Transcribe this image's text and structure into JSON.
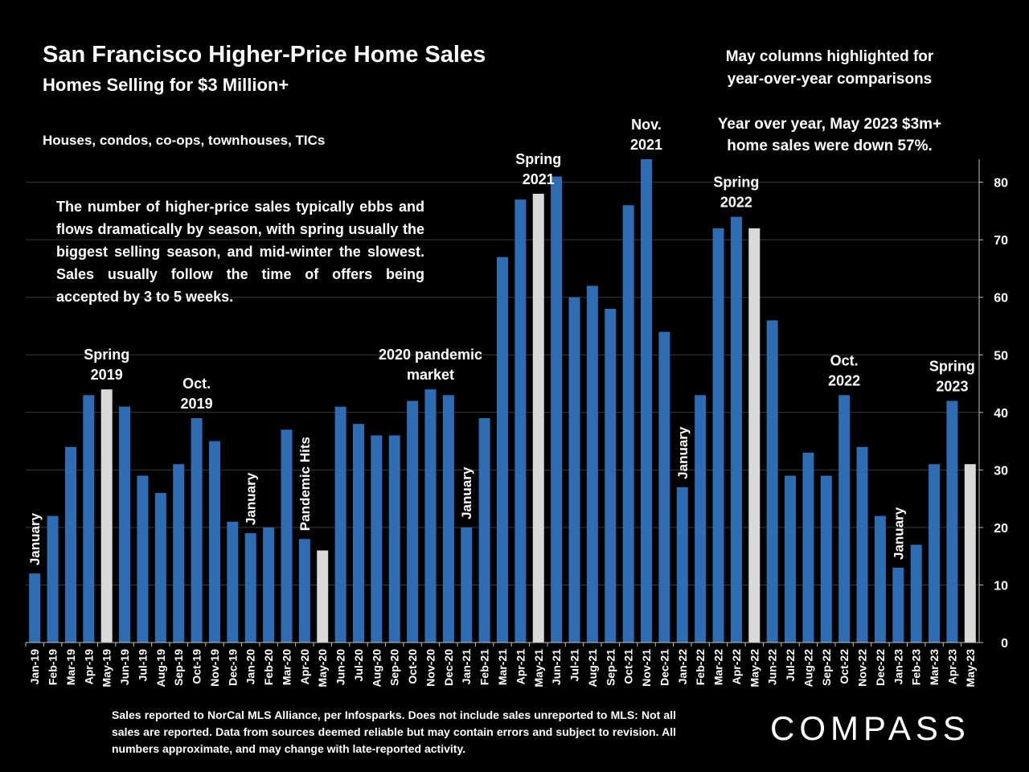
{
  "header": {
    "title": "San Francisco Higher-Price Home Sales",
    "subtitle": "Homes Selling for $3 Million+",
    "property_types": "Houses, condos, co-ops, townhouses, TICs"
  },
  "notes": {
    "may_highlight_1": "May columns highlighted for",
    "may_highlight_2": "year-over-year comparisons",
    "yoy_1": "Year over year, May 2023 $3m+",
    "yoy_2": "home sales were down 57%.",
    "explanation": "The number of higher-price sales typically ebbs and flows dramatically by season, with spring usually the biggest selling season, and mid-winter the slowest. Sales usually follow the time of offers being accepted by 3 to 5 weeks."
  },
  "footer": {
    "footnote": "Sales reported to NorCal MLS Alliance, per Infosparks. Does not include sales unreported to MLS: Not all sales are reported. Data from sources deemed reliable but may contain errors and subject to revision.  All numbers approximate, and may change with late-reported activity.",
    "logo": "COMPASS"
  },
  "colors": {
    "background": "#000000",
    "bar": "#2e6db4",
    "bar_highlight": "#d9d9d9",
    "grid": "#3a3a3a",
    "text": "#ffffff"
  },
  "chart_data": {
    "type": "bar",
    "categories": [
      "Jan-19",
      "Feb-19",
      "Mar-19",
      "Apr-19",
      "May-19",
      "Jun-19",
      "Jul-19",
      "Aug-19",
      "Sep-19",
      "Oct-19",
      "Nov-19",
      "Dec-19",
      "Jan-20",
      "Feb-20",
      "Mar-20",
      "Apr-20",
      "May-20",
      "Jun-20",
      "Jul-20",
      "Aug-20",
      "Sep-20",
      "Oct-20",
      "Nov-20",
      "Dec-20",
      "Jan-21",
      "Feb-21",
      "Mar-21",
      "Apr-21",
      "May-21",
      "Jun-21",
      "Jul-21",
      "Aug-21",
      "Sep-21",
      "Oct-21",
      "Nov-21",
      "Dec-21",
      "Jan-22",
      "Feb-22",
      "Mar-22",
      "Apr-22",
      "May-22",
      "Jun-22",
      "Jul-22",
      "Aug-22",
      "Sep-22",
      "Oct-22",
      "Nov-22",
      "Dec-22",
      "Jan-23",
      "Feb-23",
      "Mar-23",
      "Apr-23",
      "May-23"
    ],
    "values": [
      12,
      22,
      34,
      43,
      44,
      41,
      29,
      26,
      31,
      39,
      35,
      21,
      19,
      20,
      37,
      18,
      16,
      41,
      38,
      36,
      36,
      42,
      44,
      43,
      20,
      39,
      67,
      77,
      78,
      81,
      60,
      62,
      58,
      76,
      84,
      54,
      27,
      43,
      72,
      74,
      72,
      56,
      29,
      33,
      29,
      43,
      34,
      22,
      13,
      17,
      31,
      42,
      31
    ],
    "highlighted": [
      "May-19",
      "May-20",
      "May-21",
      "May-22",
      "May-23"
    ],
    "ylim": [
      0,
      84
    ],
    "yticks": [
      0,
      10,
      20,
      30,
      40,
      50,
      60,
      70,
      80
    ],
    "y_axis_side": "right",
    "grid": true,
    "annotations": [
      {
        "category": "Jan-19",
        "text": "January",
        "rotated": true
      },
      {
        "category": "May-19",
        "text": "Spring 2019",
        "lines": [
          "Spring",
          "2019"
        ]
      },
      {
        "category": "Oct-19",
        "text": "Oct. 2019",
        "lines": [
          "Oct.",
          "2019"
        ]
      },
      {
        "category": "Jan-20",
        "text": "January",
        "rotated": true
      },
      {
        "category": "Apr-20",
        "text": "Pandemic Hits",
        "rotated": true
      },
      {
        "category": "Nov-20",
        "text": "2020 pandemic market",
        "lines": [
          "2020 pandemic",
          "market"
        ]
      },
      {
        "category": "Jan-21",
        "text": "January",
        "rotated": true
      },
      {
        "category": "May-21",
        "text": "Spring 2021",
        "lines": [
          "Spring",
          "2021"
        ]
      },
      {
        "category": "Nov-21",
        "text": "Nov. 2021",
        "lines": [
          "Nov.",
          "2021"
        ]
      },
      {
        "category": "Jan-22",
        "text": "January",
        "rotated": true
      },
      {
        "category": "Apr-22",
        "text": "Spring 2022",
        "lines": [
          "Spring",
          "2022"
        ]
      },
      {
        "category": "Oct-22",
        "text": "Oct. 2022",
        "lines": [
          "Oct.",
          "2022"
        ]
      },
      {
        "category": "Jan-23",
        "text": "January",
        "rotated": true
      },
      {
        "category": "Apr-23",
        "text": "Spring 2023",
        "lines": [
          "Spring",
          "2023"
        ]
      }
    ]
  }
}
